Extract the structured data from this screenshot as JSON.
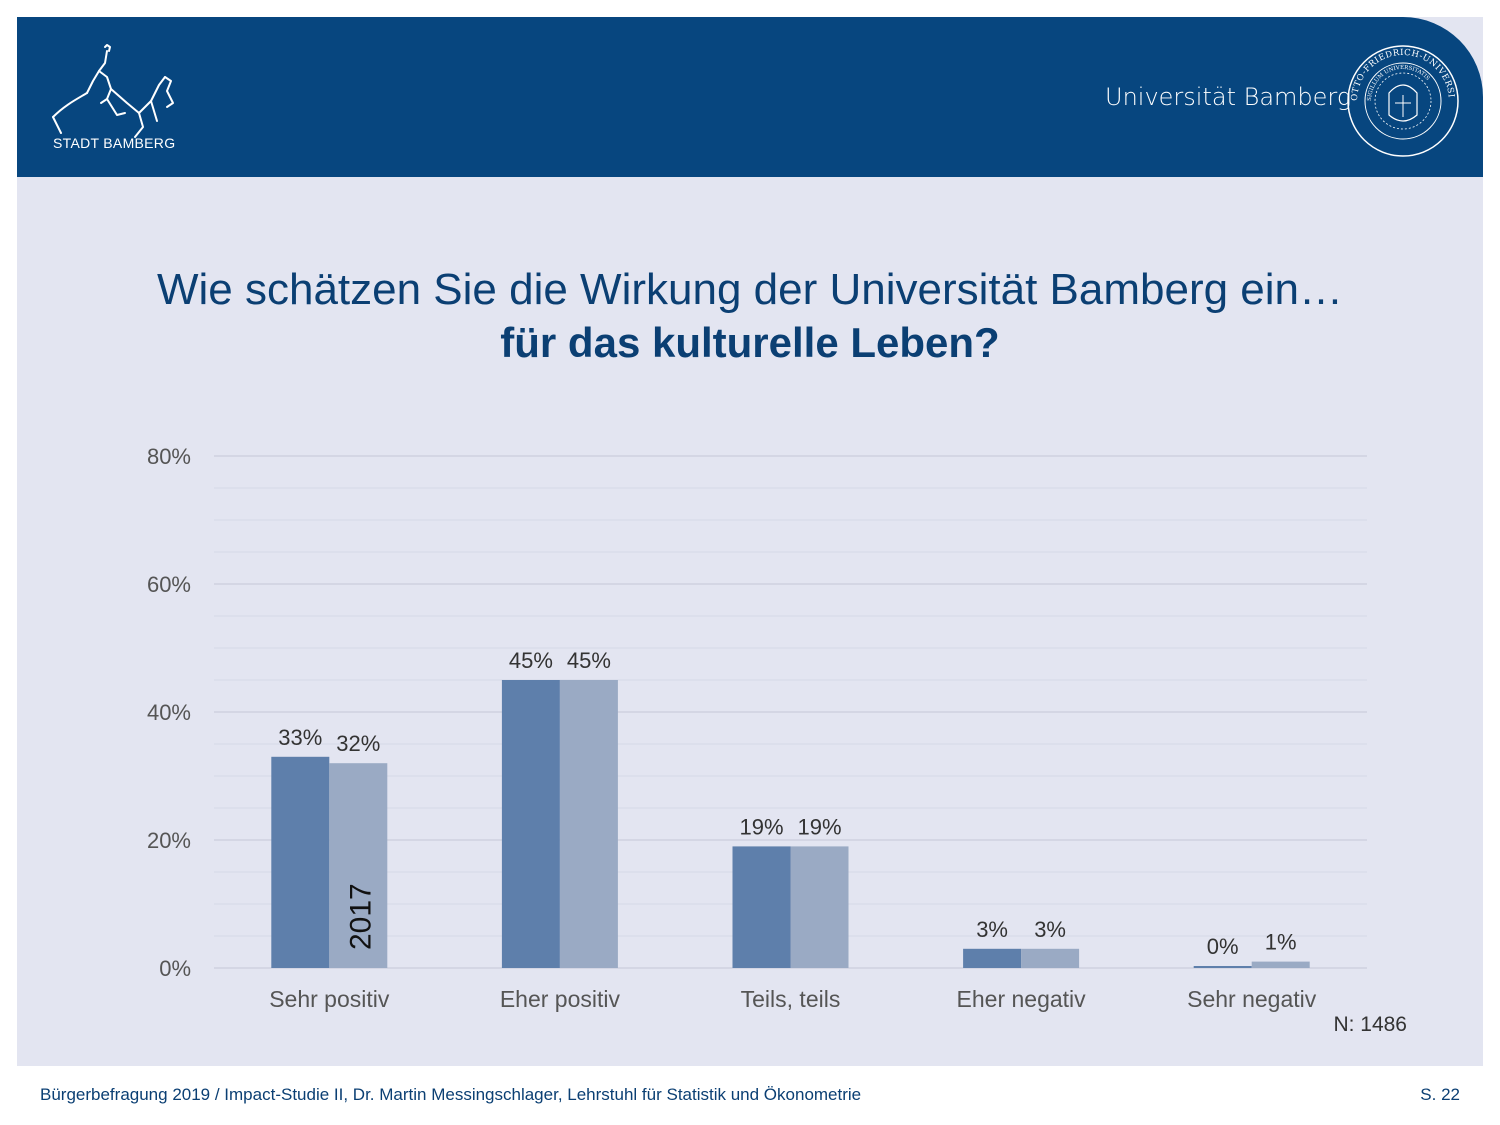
{
  "header": {
    "city_name": "STADT BAMBERG",
    "university_name": "Universität Bamberg",
    "seal_text_outer": "OTTO-FRIEDRICH-UNIVERSITY of BAMBERG",
    "seal_text_inner": "SIGILLUM UNIVERSITATIS",
    "brand_color": "#07467f"
  },
  "title": {
    "line1": "Wie schätzen Sie die Wirkung der Universität Bamberg ein…",
    "line2": "für das kulturelle Leben?"
  },
  "chart_data": {
    "type": "bar",
    "categories": [
      "Sehr positiv",
      "Eher positiv",
      "Teils, teils",
      "Eher negativ",
      "Sehr negativ"
    ],
    "series": [
      {
        "name": "",
        "color": "#5e7fab",
        "values": [
          33,
          45,
          19,
          3,
          0
        ],
        "labels": [
          "33%",
          "45%",
          "19%",
          "3%",
          "0%"
        ]
      },
      {
        "name": "2017",
        "color": "#9aaac4",
        "values": [
          32,
          45,
          19,
          3,
          1
        ],
        "labels": [
          "32%",
          "45%",
          "19%",
          "3%",
          "1%"
        ]
      }
    ],
    "ylim": [
      0,
      80
    ],
    "yticks": [
      "0%",
      "20%",
      "40%",
      "60%",
      "80%"
    ],
    "ytick_values": [
      0,
      20,
      40,
      60,
      80
    ],
    "grid": true,
    "note": "N: 1486"
  },
  "footer": {
    "text": "Bürgerbefragung 2019 / Impact-Studie II, Dr. Martin Messingschlager, Lehrstuhl für Statistik und Ökonometrie",
    "page": "S. 22"
  }
}
